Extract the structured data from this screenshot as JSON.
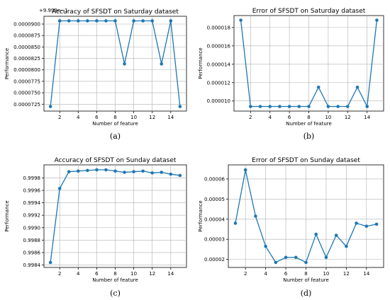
{
  "chart_data": [
    {
      "type": "line",
      "title": "Accuracy of SFSDT on Saturday dataset",
      "xlabel": "Number of feature",
      "ylabel": "Performance",
      "caption": "(a)",
      "y_offset_text": "+9.999e−1",
      "x": [
        1,
        2,
        3,
        4,
        5,
        6,
        7,
        8,
        9,
        10,
        11,
        12,
        13,
        14,
        15
      ],
      "values": [
        7.2e-05,
        9.07e-05,
        9.07e-05,
        9.07e-05,
        9.07e-05,
        9.07e-05,
        9.07e-05,
        9.07e-05,
        8.13e-05,
        9.07e-05,
        9.07e-05,
        9.07e-05,
        8.13e-05,
        9.07e-05,
        7.2e-05
      ],
      "xlim": [
        0.3,
        15.7
      ],
      "ylim": [
        7.1e-05,
        9.17e-05
      ],
      "xticks": [
        2,
        4,
        6,
        8,
        10,
        12,
        14
      ],
      "yticks": [
        7.25e-05,
        7.5e-05,
        7.75e-05,
        8e-05,
        8.25e-05,
        8.5e-05,
        8.75e-05,
        9e-05
      ],
      "ytick_labels": [
        "0.0000725",
        "0.0000750",
        "0.0000775",
        "0.0000800",
        "0.0000825",
        "0.0000850",
        "0.0000875",
        "0.0000900"
      ],
      "color": "#1f77b4",
      "grid": true
    },
    {
      "type": "line",
      "title": "Error of SFSDT on Saturday dataset",
      "xlabel": "Number of feature",
      "ylabel": "Performance",
      "caption": "(b)",
      "x": [
        1,
        2,
        3,
        4,
        5,
        6,
        7,
        8,
        9,
        10,
        11,
        12,
        13,
        14,
        15
      ],
      "values": [
        1.88e-05,
        9.4e-06,
        9.4e-06,
        9.4e-06,
        9.4e-06,
        9.4e-06,
        9.4e-06,
        9.4e-06,
        1.15e-05,
        9.4e-06,
        9.4e-06,
        9.4e-06,
        1.15e-05,
        9.4e-06,
        1.88e-05
      ],
      "xlim": [
        0.3,
        15.7
      ],
      "ylim": [
        8.9e-06,
        1.93e-05
      ],
      "xticks": [
        2,
        4,
        6,
        8,
        10,
        12,
        14
      ],
      "yticks": [
        1e-05,
        1.2e-05,
        1.4e-05,
        1.6e-05,
        1.8e-05
      ],
      "ytick_labels": [
        "0.000010",
        "0.000012",
        "0.000014",
        "0.000016",
        "0.000018"
      ],
      "color": "#1f77b4",
      "grid": true
    },
    {
      "type": "line",
      "title": "Accuracy of SFSDT on Sunday dataset",
      "xlabel": "Number of feature",
      "ylabel": "Performance",
      "caption": "(c)",
      "x": [
        1,
        2,
        3,
        4,
        5,
        6,
        7,
        8,
        9,
        10,
        11,
        12,
        13,
        14,
        15
      ],
      "values": [
        0.99844,
        0.99963,
        0.9999,
        0.99991,
        0.99992,
        0.99993,
        0.99993,
        0.99991,
        0.99989,
        0.9999,
        0.99991,
        0.99988,
        0.99989,
        0.99986,
        0.99984
      ],
      "xlim": [
        0.3,
        15.7
      ],
      "ylim": [
        0.99836,
        1.00001
      ],
      "xticks": [
        2,
        4,
        6,
        8,
        10,
        12,
        14
      ],
      "yticks": [
        0.9984,
        0.9986,
        0.9988,
        0.999,
        0.9992,
        0.9994,
        0.9996,
        0.9998
      ],
      "ytick_labels": [
        "0.9984",
        "0.9986",
        "0.9988",
        "0.9990",
        "0.9992",
        "0.9994",
        "0.9996",
        "0.9998"
      ],
      "color": "#1f77b4",
      "grid": true
    },
    {
      "type": "line",
      "title": "Error of SFSDT on Sunday dataset",
      "xlabel": "Number of feature",
      "ylabel": "Performance",
      "caption": "(d)",
      "x": [
        1,
        2,
        3,
        4,
        5,
        6,
        7,
        8,
        9,
        10,
        11,
        12,
        13,
        14,
        15
      ],
      "values": [
        3.8e-05,
        6.45e-05,
        4.15e-05,
        2.65e-05,
        1.85e-05,
        2.1e-05,
        2.1e-05,
        1.85e-05,
        3.25e-05,
        2.1e-05,
        3.2e-05,
        2.65e-05,
        3.8e-05,
        3.65e-05,
        3.75e-05
      ],
      "xlim": [
        0.3,
        15.7
      ],
      "ylim": [
        1.6e-05,
        6.7e-05
      ],
      "xticks": [
        2,
        4,
        6,
        8,
        10,
        12,
        14
      ],
      "yticks": [
        2e-05,
        3e-05,
        4e-05,
        5e-05,
        6e-05
      ],
      "ytick_labels": [
        "0.00002",
        "0.00003",
        "0.00004",
        "0.00005",
        "0.00006"
      ],
      "color": "#1f77b4",
      "grid": true
    }
  ]
}
